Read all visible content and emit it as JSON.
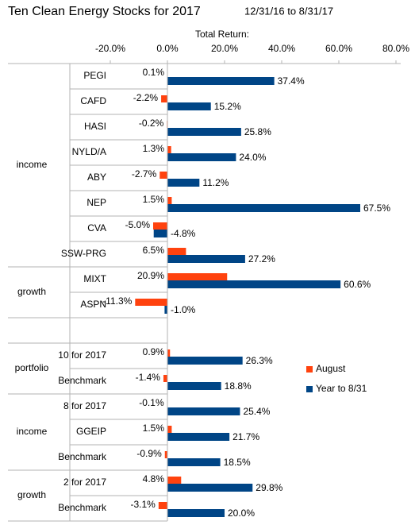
{
  "chart_data": {
    "type": "grouped-hbar",
    "title": "Ten Clean Energy Stocks for 2017",
    "subtitle": "12/31/16 to 8/31/17",
    "x_label": "Total Return:",
    "xlim": [
      -20,
      80
    ],
    "xticks": [
      {
        "value": -20,
        "label": "-20.0%"
      },
      {
        "value": 0,
        "label": "0.0%"
      },
      {
        "value": 20,
        "label": "20.0%"
      },
      {
        "value": 40,
        "label": "40.0%"
      },
      {
        "value": 60,
        "label": "60.0%"
      },
      {
        "value": 80,
        "label": "80.0%"
      }
    ],
    "grid": false,
    "legend": "right",
    "groups": [
      {
        "label": "income",
        "categories": [
          "PEGI",
          "CAFD",
          "HASI",
          "NYLD/A",
          "ABY",
          "NEP",
          "CVA",
          "SSW-PRG"
        ]
      },
      {
        "label": "growth",
        "categories": [
          "MIXT",
          "ASPN"
        ]
      },
      {
        "label": null,
        "categories": [
          null
        ]
      },
      {
        "label": "portfolio",
        "categories": [
          "10 for 2017",
          "Benchmark"
        ]
      },
      {
        "label": "income",
        "categories": [
          "8 for 2017",
          "GGEIP",
          "Benchmark"
        ]
      },
      {
        "label": "growth",
        "categories": [
          "2 for 2017",
          "Benchmark"
        ]
      }
    ],
    "series": [
      {
        "name": "August",
        "color": "#ff420e",
        "values": [
          0.1,
          -2.2,
          -0.2,
          1.3,
          -2.7,
          1.5,
          -5.0,
          6.5,
          20.9,
          -11.3,
          null,
          0.9,
          -1.4,
          -0.1,
          1.5,
          -0.9,
          4.8,
          -3.1
        ],
        "value_labels": [
          "0.1%",
          "-2.2%",
          "-0.2%",
          "1.3%",
          "-2.7%",
          "1.5%",
          "-5.0%",
          "6.5%",
          "20.9%",
          "-11.3%",
          null,
          "0.9%",
          "-1.4%",
          "-0.1%",
          "1.5%",
          "-0.9%",
          "4.8%",
          "-3.1%"
        ]
      },
      {
        "name": "Year to 8/31",
        "color": "#004586",
        "values": [
          37.4,
          15.2,
          25.8,
          24.0,
          11.2,
          67.5,
          -4.8,
          27.2,
          60.6,
          -1.0,
          null,
          26.3,
          18.8,
          25.4,
          21.7,
          18.5,
          29.8,
          20.0
        ],
        "value_labels": [
          "37.4%",
          "15.2%",
          "25.8%",
          "24.0%",
          "11.2%",
          "67.5%",
          "-4.8%",
          "27.2%",
          "60.6%",
          "-1.0%",
          null,
          "26.3%",
          "18.8%",
          "25.4%",
          "21.7%",
          "18.5%",
          "29.8%",
          "20.0%"
        ]
      }
    ]
  }
}
